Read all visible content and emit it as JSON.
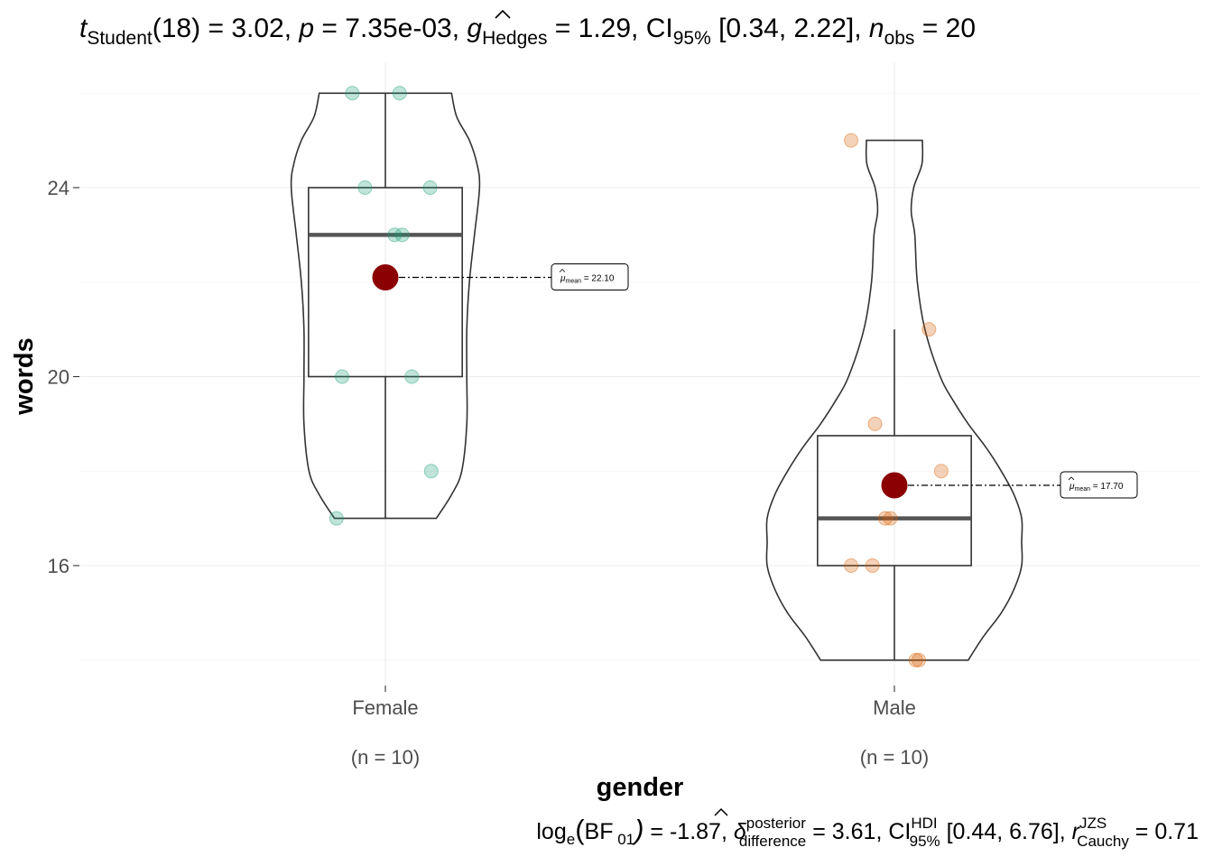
{
  "chart_data": {
    "type": "violin-box",
    "title": "",
    "subtitle": {
      "t_sym": "t",
      "t_sub": "Student",
      "df": "(18)",
      "eq": " = ",
      "t_value": "3.02",
      "sep": ", ",
      "p_sym": "p",
      "p_value": "7.35e-03",
      "g_sym": "g",
      "g_sub": "Hedges",
      "g_value": "1.29",
      "ci_sym": "CI",
      "ci_sub": "95%",
      "ci_value": "[0.34, 2.22]",
      "n_sym": "n",
      "n_sub": "obs",
      "n_value": "20"
    },
    "caption": {
      "log_sym": "log",
      "log_sub": "e",
      "bf_open": "(",
      "bf_sym": "BF",
      "bf_sub": "01",
      "bf_close": ")",
      "eq": " = ",
      "bf_value": "-1.87",
      "sep": ", ",
      "delta_sym": "δ",
      "delta_sup": "posterior",
      "delta_sub": "difference",
      "delta_value": "3.61",
      "ci_sym": "CI",
      "ci_sup": "HDI",
      "ci_sub": "95%",
      "ci_value": "[0.44, 6.76]",
      "r_sym": "r",
      "r_sup": "JZS",
      "r_sub": "Cauchy",
      "r_value": "0.71"
    },
    "xlabel": "gender",
    "ylabel": "words",
    "y_ticks": [
      16,
      20,
      24
    ],
    "y_tick_labels": [
      "16",
      "20",
      "24"
    ],
    "y_minor_ticks": [
      14,
      18,
      22,
      26
    ],
    "ylim": [
      13.5,
      26.6
    ],
    "grid": true,
    "groups": [
      {
        "category": "Female",
        "n_label": "(n = 10)",
        "color": "#1b9e77",
        "points": [
          {
            "x": -0.065,
            "y": 26
          },
          {
            "x": 0.028,
            "y": 26
          },
          {
            "x": -0.04,
            "y": 24
          },
          {
            "x": 0.088,
            "y": 24
          },
          {
            "x": 0.018,
            "y": 23
          },
          {
            "x": 0.033,
            "y": 23
          },
          {
            "x": -0.085,
            "y": 20
          },
          {
            "x": 0.052,
            "y": 20
          },
          {
            "x": 0.09,
            "y": 18
          },
          {
            "x": -0.096,
            "y": 17
          }
        ],
        "box": {
          "q1": 20,
          "median": 23,
          "q3": 24,
          "whisker_low": 17,
          "whisker_high": 26
        },
        "mean": 22.1,
        "mean_label_sym": "μ",
        "mean_label_sub": "mean",
        "mean_label_value": " = 22.10",
        "violin": [
          [
            17,
            0.1
          ],
          [
            17.5,
            0.13
          ],
          [
            18,
            0.15
          ],
          [
            19,
            0.16
          ],
          [
            20,
            0.16
          ],
          [
            21,
            0.16
          ],
          [
            22,
            0.165
          ],
          [
            23,
            0.175
          ],
          [
            24,
            0.185
          ],
          [
            24.5,
            0.18
          ],
          [
            25,
            0.165
          ],
          [
            25.5,
            0.14
          ],
          [
            26,
            0.13
          ]
        ]
      },
      {
        "category": "Male",
        "n_label": "(n = 10)",
        "color": "#d95f02",
        "points": [
          {
            "x": -0.085,
            "y": 25
          },
          {
            "x": 0.068,
            "y": 21
          },
          {
            "x": -0.038,
            "y": 19
          },
          {
            "x": 0.092,
            "y": 18
          },
          {
            "x": -0.018,
            "y": 17
          },
          {
            "x": -0.008,
            "y": 17
          },
          {
            "x": -0.085,
            "y": 16
          },
          {
            "x": -0.043,
            "y": 16
          },
          {
            "x": 0.042,
            "y": 14
          },
          {
            "x": 0.048,
            "y": 14
          }
        ],
        "box": {
          "q1": 16,
          "median": 17,
          "q3": 18.75,
          "whisker_low": 14,
          "whisker_high": 21
        },
        "mean": 17.7,
        "mean_label_sym": "μ",
        "mean_label_sub": "mean",
        "mean_label_value": " = 17.70",
        "violin": [
          [
            14,
            0.145
          ],
          [
            14.5,
            0.175
          ],
          [
            15,
            0.21
          ],
          [
            15.5,
            0.235
          ],
          [
            16,
            0.25
          ],
          [
            16.5,
            0.25
          ],
          [
            17,
            0.25
          ],
          [
            17.5,
            0.235
          ],
          [
            18,
            0.21
          ],
          [
            18.5,
            0.18
          ],
          [
            19,
            0.145
          ],
          [
            19.5,
            0.115
          ],
          [
            20,
            0.09
          ],
          [
            21,
            0.06
          ],
          [
            22,
            0.045
          ],
          [
            23,
            0.04
          ],
          [
            23.5,
            0.033
          ],
          [
            24,
            0.038
          ],
          [
            24.5,
            0.054
          ],
          [
            25,
            0.055
          ]
        ]
      }
    ]
  }
}
